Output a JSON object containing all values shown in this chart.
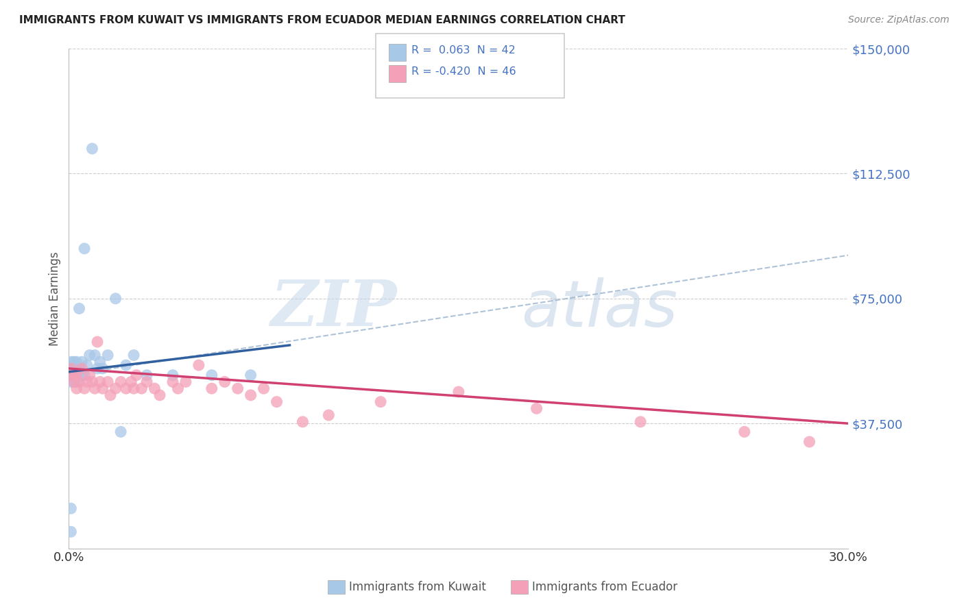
{
  "title": "IMMIGRANTS FROM KUWAIT VS IMMIGRANTS FROM ECUADOR MEDIAN EARNINGS CORRELATION CHART",
  "source": "Source: ZipAtlas.com",
  "ylabel": "Median Earnings",
  "xlim": [
    0.0,
    0.3
  ],
  "ylim": [
    0,
    150000
  ],
  "yticks": [
    0,
    37500,
    75000,
    112500,
    150000
  ],
  "ytick_labels": [
    "",
    "$37,500",
    "$75,000",
    "$112,500",
    "$150,000"
  ],
  "xticks": [
    0.0,
    0.05,
    0.1,
    0.15,
    0.2,
    0.25,
    0.3
  ],
  "xtick_labels": [
    "0.0%",
    "",
    "",
    "",
    "",
    "",
    "30.0%"
  ],
  "kuwait_R": 0.063,
  "kuwait_N": 42,
  "ecuador_R": -0.42,
  "ecuador_N": 46,
  "kuwait_color": "#a8c8e8",
  "ecuador_color": "#f4a0b8",
  "kuwait_line_color": "#3060a0",
  "ecuador_line_color": "#d04070",
  "legend_label_kuwait": "Immigrants from Kuwait",
  "legend_label_ecuador": "Immigrants from Ecuador",
  "watermark_zip": "ZIP",
  "watermark_atlas": "atlas",
  "kuwait_x": [
    0.0008,
    0.0008,
    0.001,
    0.001,
    0.001,
    0.001,
    0.0015,
    0.0015,
    0.002,
    0.002,
    0.002,
    0.002,
    0.002,
    0.0025,
    0.0025,
    0.003,
    0.003,
    0.003,
    0.003,
    0.004,
    0.004,
    0.004,
    0.005,
    0.005,
    0.006,
    0.006,
    0.007,
    0.008,
    0.009,
    0.01,
    0.011,
    0.012,
    0.013,
    0.015,
    0.018,
    0.02,
    0.022,
    0.025,
    0.03,
    0.04,
    0.055,
    0.07
  ],
  "kuwait_y": [
    5000,
    12000,
    50000,
    52000,
    54000,
    56000,
    52000,
    54000,
    50000,
    52000,
    54000,
    55000,
    56000,
    52000,
    54000,
    50000,
    52000,
    54000,
    56000,
    52000,
    54000,
    72000,
    52000,
    56000,
    52000,
    90000,
    55000,
    58000,
    120000,
    58000,
    54000,
    56000,
    54000,
    58000,
    75000,
    35000,
    55000,
    58000,
    52000,
    52000,
    52000,
    52000
  ],
  "ecuador_x": [
    0.001,
    0.001,
    0.002,
    0.002,
    0.003,
    0.003,
    0.004,
    0.005,
    0.006,
    0.007,
    0.008,
    0.009,
    0.01,
    0.011,
    0.012,
    0.013,
    0.015,
    0.016,
    0.018,
    0.02,
    0.022,
    0.024,
    0.025,
    0.026,
    0.028,
    0.03,
    0.033,
    0.035,
    0.04,
    0.042,
    0.045,
    0.05,
    0.055,
    0.06,
    0.065,
    0.07,
    0.075,
    0.08,
    0.09,
    0.1,
    0.12,
    0.15,
    0.18,
    0.22,
    0.26,
    0.285
  ],
  "ecuador_y": [
    52000,
    54000,
    50000,
    52000,
    48000,
    52000,
    50000,
    54000,
    48000,
    50000,
    52000,
    50000,
    48000,
    62000,
    50000,
    48000,
    50000,
    46000,
    48000,
    50000,
    48000,
    50000,
    48000,
    52000,
    48000,
    50000,
    48000,
    46000,
    50000,
    48000,
    50000,
    55000,
    48000,
    50000,
    48000,
    46000,
    48000,
    44000,
    38000,
    40000,
    44000,
    47000,
    42000,
    38000,
    35000,
    32000
  ],
  "kuwait_line_x": [
    0.0,
    0.085
  ],
  "kuwait_line_y": [
    53000,
    61000
  ],
  "ecuador_line_x": [
    0.0,
    0.3
  ],
  "ecuador_line_y": [
    54000,
    37500
  ],
  "dash_line_x": [
    0.0,
    0.3
  ],
  "dash_line_y": [
    52000,
    88000
  ]
}
